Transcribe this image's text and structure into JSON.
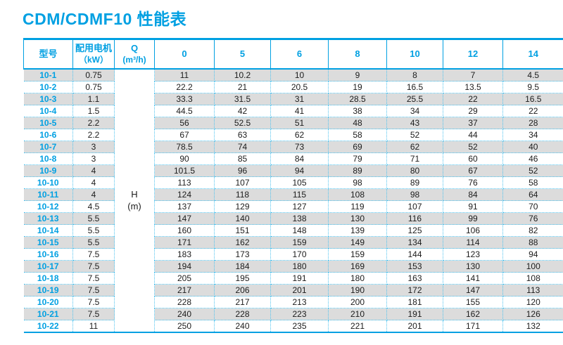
{
  "title": "CDM/CDMF10 性能表",
  "colors": {
    "accent_cyan": "#00a0e2",
    "dashed_border": "#4fc3ef",
    "stripe_gray": "#dcdcdc",
    "value_text": "#1c1c1c"
  },
  "table": {
    "headers": {
      "model": "型号",
      "motor_line1": "配用电机",
      "motor_line2": "（kW）",
      "q_line1": "Q",
      "q_line2": "(m³/h)",
      "flow_columns": [
        "0",
        "5",
        "6",
        "8",
        "10",
        "12",
        "14"
      ]
    },
    "h_label_line1": "H",
    "h_label_line2": "(m)",
    "rows": [
      {
        "model": "10-1",
        "kw": "0.75",
        "values": [
          "11",
          "10.2",
          "10",
          "9",
          "8",
          "7",
          "4.5"
        ]
      },
      {
        "model": "10-2",
        "kw": "0.75",
        "values": [
          "22.2",
          "21",
          "20.5",
          "19",
          "16.5",
          "13.5",
          "9.5"
        ]
      },
      {
        "model": "10-3",
        "kw": "1.1",
        "values": [
          "33.3",
          "31.5",
          "31",
          "28.5",
          "25.5",
          "22",
          "16.5"
        ]
      },
      {
        "model": "10-4",
        "kw": "1.5",
        "values": [
          "44.5",
          "42",
          "41",
          "38",
          "34",
          "29",
          "22"
        ]
      },
      {
        "model": "10-5",
        "kw": "2.2",
        "values": [
          "56",
          "52.5",
          "51",
          "48",
          "43",
          "37",
          "28"
        ]
      },
      {
        "model": "10-6",
        "kw": "2.2",
        "values": [
          "67",
          "63",
          "62",
          "58",
          "52",
          "44",
          "34"
        ]
      },
      {
        "model": "10-7",
        "kw": "3",
        "values": [
          "78.5",
          "74",
          "73",
          "69",
          "62",
          "52",
          "40"
        ]
      },
      {
        "model": "10-8",
        "kw": "3",
        "values": [
          "90",
          "85",
          "84",
          "79",
          "71",
          "60",
          "46"
        ]
      },
      {
        "model": "10-9",
        "kw": "4",
        "values": [
          "101.5",
          "96",
          "94",
          "89",
          "80",
          "67",
          "52"
        ]
      },
      {
        "model": "10-10",
        "kw": "4",
        "values": [
          "113",
          "107",
          "105",
          "98",
          "89",
          "76",
          "58"
        ]
      },
      {
        "model": "10-11",
        "kw": "4",
        "values": [
          "124",
          "118",
          "115",
          "108",
          "98",
          "84",
          "64"
        ]
      },
      {
        "model": "10-12",
        "kw": "4.5",
        "values": [
          "137",
          "129",
          "127",
          "119",
          "107",
          "91",
          "70"
        ]
      },
      {
        "model": "10-13",
        "kw": "5.5",
        "values": [
          "147",
          "140",
          "138",
          "130",
          "116",
          "99",
          "76"
        ]
      },
      {
        "model": "10-14",
        "kw": "5.5",
        "values": [
          "160",
          "151",
          "148",
          "139",
          "125",
          "106",
          "82"
        ]
      },
      {
        "model": "10-15",
        "kw": "5.5",
        "values": [
          "171",
          "162",
          "159",
          "149",
          "134",
          "114",
          "88"
        ]
      },
      {
        "model": "10-16",
        "kw": "7.5",
        "values": [
          "183",
          "173",
          "170",
          "159",
          "144",
          "123",
          "94"
        ]
      },
      {
        "model": "10-17",
        "kw": "7.5",
        "values": [
          "194",
          "184",
          "180",
          "169",
          "153",
          "130",
          "100"
        ]
      },
      {
        "model": "10-18",
        "kw": "7.5",
        "values": [
          "205",
          "195",
          "191",
          "180",
          "163",
          "141",
          "108"
        ]
      },
      {
        "model": "10-19",
        "kw": "7.5",
        "values": [
          "217",
          "206",
          "201",
          "190",
          "172",
          "147",
          "113"
        ]
      },
      {
        "model": "10-20",
        "kw": "7.5",
        "values": [
          "228",
          "217",
          "213",
          "200",
          "181",
          "155",
          "120"
        ]
      },
      {
        "model": "10-21",
        "kw": "7.5",
        "values": [
          "240",
          "228",
          "223",
          "210",
          "191",
          "162",
          "126"
        ]
      },
      {
        "model": "10-22",
        "kw": "11",
        "values": [
          "250",
          "240",
          "235",
          "221",
          "201",
          "171",
          "132"
        ]
      }
    ]
  }
}
